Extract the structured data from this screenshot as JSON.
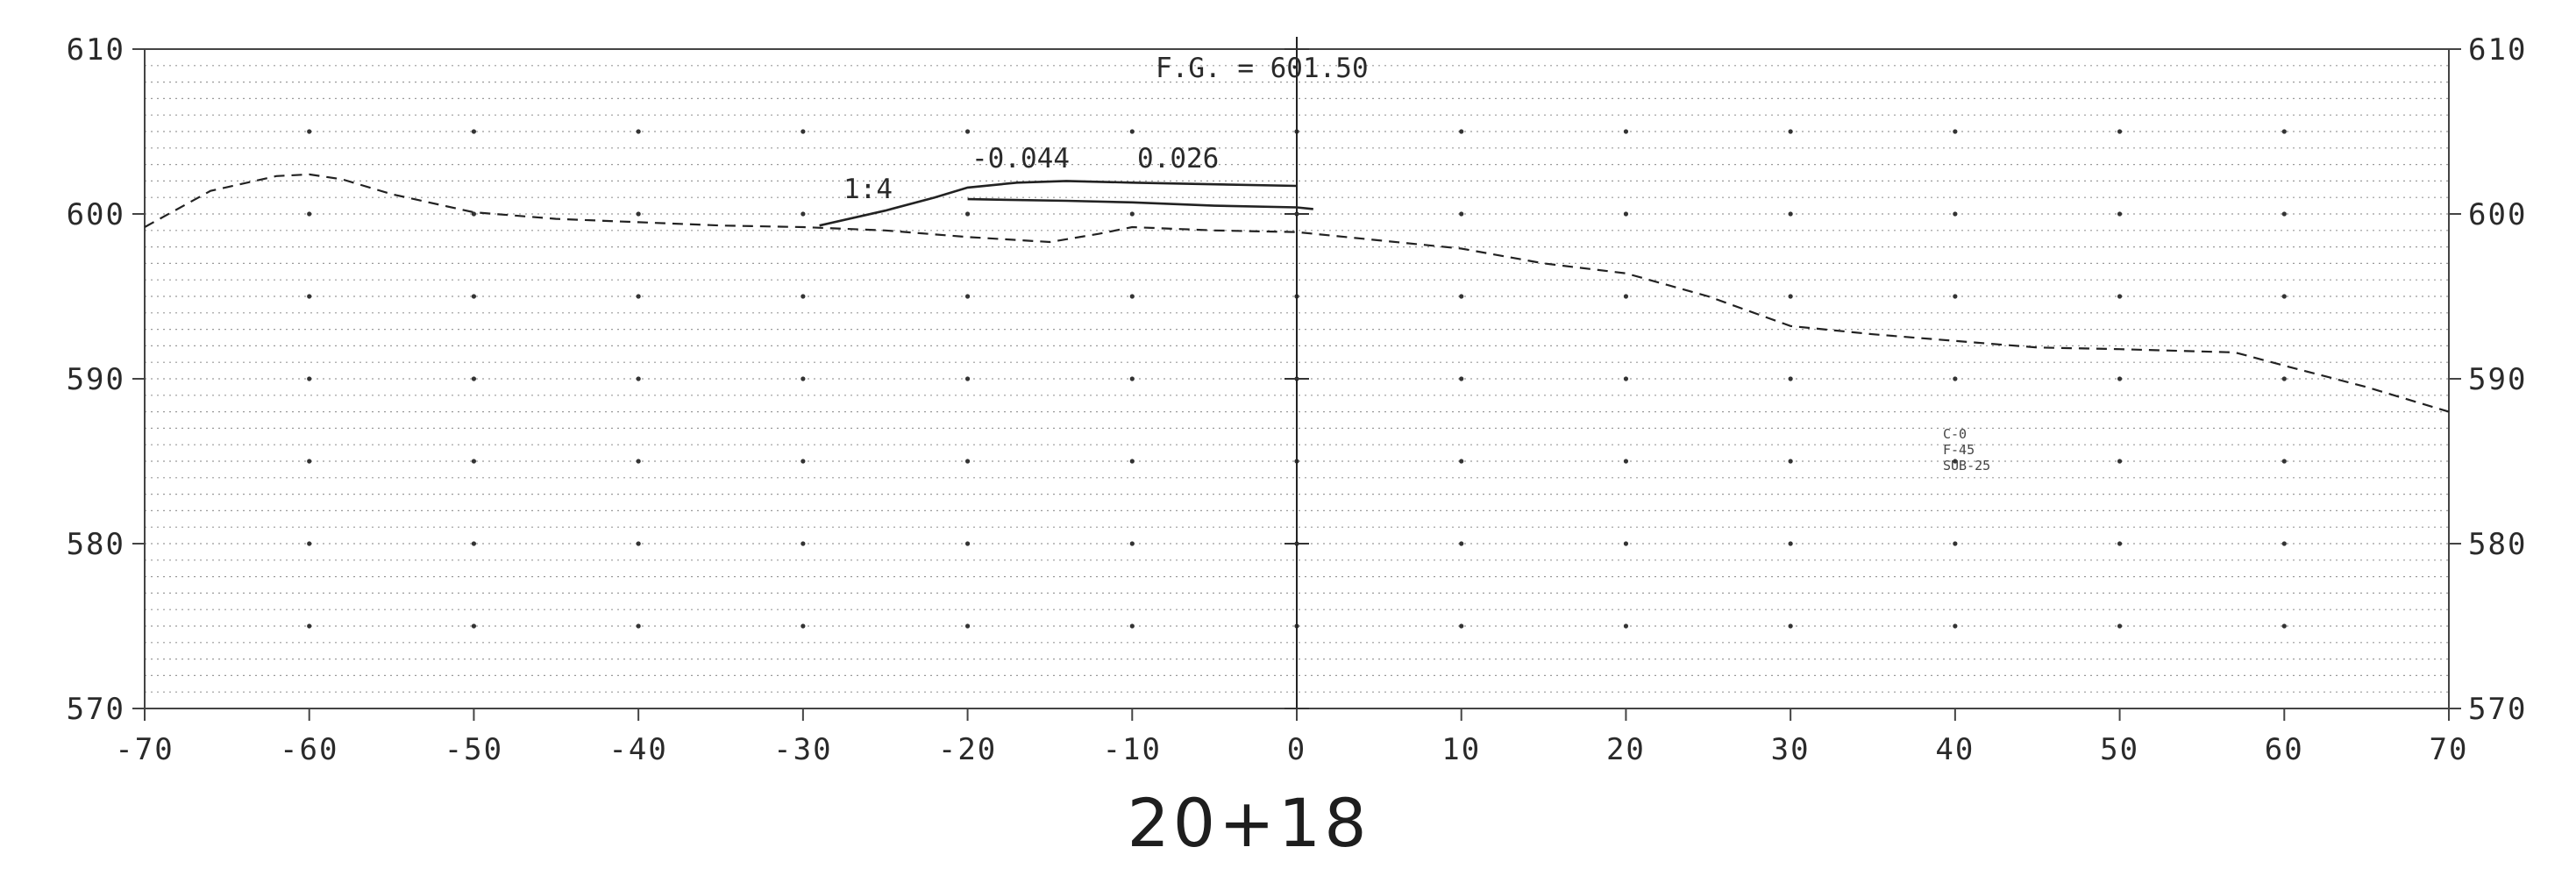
{
  "chart_data": {
    "type": "line",
    "title": "20+18",
    "xlim": [
      -70,
      70
    ],
    "ylim": [
      570,
      610
    ],
    "x_ticks": [
      "-70",
      "-60",
      "-50",
      "-40",
      "-30",
      "-20",
      "-10",
      "0",
      "10",
      "20",
      "30",
      "40",
      "50",
      "60",
      "70"
    ],
    "y_ticks_left": [
      "610",
      "600",
      "590",
      "580",
      "570"
    ],
    "y_ticks_right": [
      "610",
      "600",
      "590",
      "580",
      "570"
    ],
    "grid": true,
    "annotations": {
      "finish_grade": "F.G. = 601.50",
      "slope_left": "-0.044",
      "slope_right": "0.026",
      "side_slope": "1:4",
      "notes": [
        "C-0",
        "F-45",
        "SUB-25"
      ]
    },
    "series": [
      {
        "style": "dashed",
        "x": [
          -70,
          -66,
          -62,
          -60,
          -58,
          -55,
          -50,
          -45,
          -40,
          -35,
          -30,
          -25,
          -20,
          -15,
          -12,
          -10,
          -5,
          0,
          5,
          10,
          15,
          20,
          25,
          30,
          35,
          40,
          45,
          50,
          57,
          60,
          65,
          70
        ],
        "y": [
          599.2,
          601.4,
          602.3,
          602.4,
          602.1,
          601.2,
          600.1,
          599.7,
          599.5,
          599.3,
          599.2,
          599.0,
          598.6,
          598.3,
          598.8,
          599.2,
          599.0,
          598.9,
          598.4,
          597.9,
          597.0,
          596.4,
          595.0,
          593.2,
          592.7,
          592.3,
          591.9,
          591.8,
          591.6,
          590.8,
          589.5,
          588.0
        ]
      },
      {
        "style": "solid",
        "x": [
          -29,
          -25,
          -22,
          -20,
          -17,
          -14,
          -10,
          -5,
          0
        ],
        "y": [
          599.3,
          600.2,
          601.0,
          601.6,
          601.9,
          602.0,
          601.9,
          601.8,
          601.7
        ]
      },
      {
        "style": "solid",
        "x": [
          -20,
          -14,
          -10,
          -5,
          0,
          1
        ],
        "y": [
          600.9,
          600.8,
          600.7,
          600.5,
          600.4,
          600.3
        ]
      }
    ]
  }
}
